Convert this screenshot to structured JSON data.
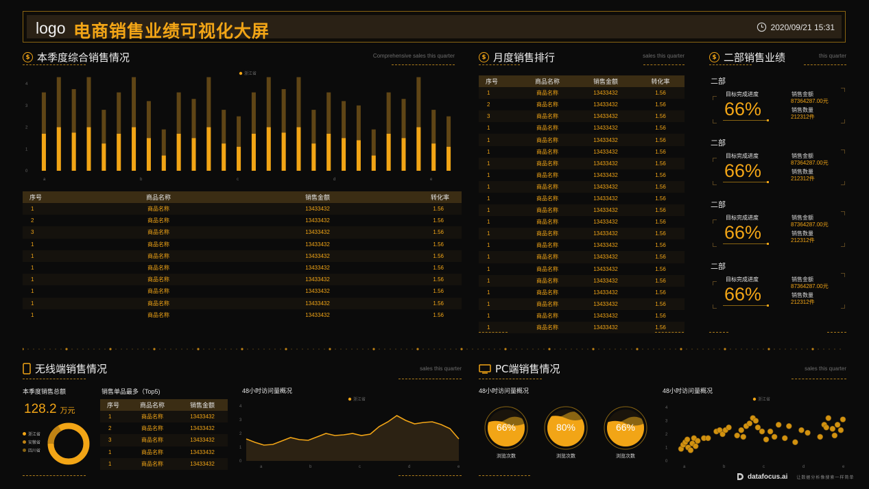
{
  "header": {
    "logo": "logo",
    "title": "电商销售业绩可视化大屏",
    "datetime": "2020/09/21 15:31"
  },
  "colors": {
    "accent": "#f2a516",
    "accent_dark": "#5f4516",
    "bg": "#0b0b0b"
  },
  "quarter_panel": {
    "title": "本季度综合销售情况",
    "subtitle": "Comprehensive sales this quarter",
    "chart_data": {
      "type": "bar",
      "legend": [
        "浙江省"
      ],
      "legend_position": "top-center",
      "x_ticks": [
        "a",
        "b",
        "c",
        "d",
        "e"
      ],
      "y_ticks": [
        "0",
        "1",
        "2",
        "3",
        "4"
      ],
      "ylim": [
        0,
        4
      ],
      "series": [
        {
          "values": [
            1.7,
            2.0,
            1.75,
            2.0,
            1.25,
            1.7,
            2.0,
            1.5,
            0.7,
            1.7,
            1.5,
            2.0,
            1.25,
            1.1,
            1.7,
            2.0,
            1.75,
            2.0,
            1.25,
            1.7,
            1.5,
            1.4,
            0.7,
            1.7,
            1.5,
            2.0,
            1.25,
            1.1
          ]
        },
        {
          "values": [
            1.9,
            2.3,
            2.0,
            2.3,
            1.55,
            1.9,
            2.3,
            1.7,
            1.2,
            1.9,
            1.8,
            2.3,
            1.55,
            1.4,
            1.9,
            2.3,
            2.0,
            2.3,
            1.55,
            1.9,
            1.7,
            1.6,
            1.2,
            1.9,
            1.8,
            2.3,
            1.55,
            1.4
          ]
        }
      ]
    },
    "table": {
      "headers": [
        "序号",
        "商品名称",
        "销售金额",
        "转化率"
      ],
      "rows": [
        [
          "1",
          "商品名称",
          "13433432",
          "1.56"
        ],
        [
          "2",
          "商品名称",
          "13433432",
          "1.56"
        ],
        [
          "3",
          "商品名称",
          "13433432",
          "1.56"
        ],
        [
          "1",
          "商品名称",
          "13433432",
          "1.56"
        ],
        [
          "1",
          "商品名称",
          "13433432",
          "1.56"
        ],
        [
          "1",
          "商品名称",
          "13433432",
          "1.56"
        ],
        [
          "1",
          "商品名称",
          "13433432",
          "1.56"
        ],
        [
          "1",
          "商品名称",
          "13433432",
          "1.56"
        ],
        [
          "1",
          "商品名称",
          "13433432",
          "1.56"
        ],
        [
          "1",
          "商品名称",
          "13433432",
          "1.56"
        ]
      ]
    }
  },
  "monthly_panel": {
    "title": "月度销售排行",
    "subtitle": "sales this quarter",
    "table": {
      "headers": [
        "序号",
        "商品名称",
        "销售金额",
        "转化率"
      ],
      "rows": [
        [
          "1",
          "商品名称",
          "13433432",
          "1.56"
        ],
        [
          "2",
          "商品名称",
          "13433432",
          "1.56"
        ],
        [
          "3",
          "商品名称",
          "13433432",
          "1.56"
        ],
        [
          "1",
          "商品名称",
          "13433432",
          "1.56"
        ],
        [
          "1",
          "商品名称",
          "13433432",
          "1.56"
        ],
        [
          "1",
          "商品名称",
          "13433432",
          "1.56"
        ],
        [
          "1",
          "商品名称",
          "13433432",
          "1.56"
        ],
        [
          "1",
          "商品名称",
          "13433432",
          "1.56"
        ],
        [
          "1",
          "商品名称",
          "13433432",
          "1.56"
        ],
        [
          "1",
          "商品名称",
          "13433432",
          "1.56"
        ],
        [
          "1",
          "商品名称",
          "13433432",
          "1.56"
        ],
        [
          "1",
          "商品名称",
          "13433432",
          "1.56"
        ],
        [
          "1",
          "商品名称",
          "13433432",
          "1.56"
        ],
        [
          "1",
          "商品名称",
          "13433432",
          "1.56"
        ],
        [
          "1",
          "商品名称",
          "13433432",
          "1.56"
        ],
        [
          "1",
          "商品名称",
          "13433432",
          "1.56"
        ],
        [
          "1",
          "商品名称",
          "13433432",
          "1.56"
        ],
        [
          "1",
          "商品名称",
          "13433432",
          "1.56"
        ],
        [
          "1",
          "商品名称",
          "13433432",
          "1.56"
        ],
        [
          "1",
          "商品名称",
          "13433432",
          "1.56"
        ],
        [
          "1",
          "商品名称",
          "13433432",
          "1.56"
        ]
      ]
    }
  },
  "dept_panel": {
    "title": "二部销售业绩",
    "subtitle": "this quarter",
    "cards": [
      {
        "name": "二部",
        "progress_label": "目标完成进度",
        "percent": "66%",
        "amount_label": "销售金额",
        "amount": "87364287.00元",
        "count_label": "销售数量",
        "count": "212312件"
      },
      {
        "name": "二部",
        "progress_label": "目标完成进度",
        "percent": "66%",
        "amount_label": "销售金额",
        "amount": "87364287.00元",
        "count_label": "销售数量",
        "count": "212312件"
      },
      {
        "name": "二部",
        "progress_label": "目标完成进度",
        "percent": "66%",
        "amount_label": "销售金额",
        "amount": "87364287.00元",
        "count_label": "销售数量",
        "count": "212312件"
      },
      {
        "name": "二部",
        "progress_label": "目标完成进度",
        "percent": "66%",
        "amount_label": "销售金额",
        "amount": "87364287.00元",
        "count_label": "销售数量",
        "count": "212312件"
      }
    ]
  },
  "mobile_panel": {
    "title": "无线端销售情况",
    "subtitle": "sales this quarter",
    "total_label": "本季度销售总额",
    "total_value": "128.2",
    "total_unit": "万元",
    "donut_legend": [
      "浙江省",
      "安徽省",
      "四川省"
    ],
    "top5_title": "销售单品最多（Top5)",
    "top5_table": {
      "headers": [
        "序号",
        "商品名称",
        "销售金额"
      ],
      "rows": [
        [
          "1",
          "商品名称",
          "13433432"
        ],
        [
          "2",
          "商品名称",
          "13433432"
        ],
        [
          "3",
          "商品名称",
          "13433432"
        ],
        [
          "1",
          "商品名称",
          "13433432"
        ],
        [
          "1",
          "商品名称",
          "13433432"
        ]
      ]
    },
    "visits_title": "48小时访问量概况",
    "chart_data": {
      "type": "area",
      "legend": [
        "浙江省"
      ],
      "x_ticks": [
        "a",
        "b",
        "c",
        "d",
        "e"
      ],
      "y_ticks": [
        "0",
        "1",
        "2",
        "3",
        "4"
      ],
      "ylim": [
        0,
        4
      ],
      "x": [
        0,
        0.5,
        1,
        1.5,
        2,
        2.5,
        3,
        3.5,
        4,
        4.5,
        5,
        5.5,
        6,
        6.5,
        7,
        7.5,
        8,
        8.5,
        9,
        9.5,
        10,
        10.5,
        11,
        11.5,
        12
      ],
      "values": [
        1.6,
        1.35,
        1.15,
        1.2,
        1.45,
        1.7,
        1.55,
        1.5,
        1.75,
        2.0,
        1.85,
        1.9,
        2.0,
        1.85,
        1.95,
        2.5,
        2.85,
        3.3,
        2.95,
        2.7,
        2.8,
        2.85,
        2.65,
        2.35,
        1.6
      ]
    }
  },
  "pc_panel": {
    "title": "PC端销售情况",
    "subtitle": "sales this quarter",
    "visits_title": "48小时访问量概况",
    "gauges": [
      {
        "percent": "66%",
        "label": "浏览次数",
        "value": 0.66
      },
      {
        "percent": "80%",
        "label": "浏览次数",
        "value": 0.8
      },
      {
        "percent": "66%",
        "label": "浏览次数",
        "value": 0.66
      }
    ],
    "chart_data": {
      "type": "scatter",
      "legend": [
        "浙江省"
      ],
      "x_ticks": [
        "a",
        "b",
        "c",
        "d",
        "e"
      ],
      "y_ticks": [
        "0",
        "1",
        "2",
        "3",
        "4"
      ],
      "ylim": [
        0,
        4
      ],
      "xlim": [
        0,
        4
      ],
      "points": [
        [
          0.05,
          0.9
        ],
        [
          0.1,
          1.2
        ],
        [
          0.15,
          1.4
        ],
        [
          0.2,
          1.6
        ],
        [
          0.22,
          1.0
        ],
        [
          0.28,
          0.8
        ],
        [
          0.32,
          1.3
        ],
        [
          0.36,
          1.7
        ],
        [
          0.4,
          1.1
        ],
        [
          0.45,
          1.5
        ],
        [
          0.6,
          1.7
        ],
        [
          0.7,
          1.7
        ],
        [
          0.9,
          2.2
        ],
        [
          0.98,
          2.3
        ],
        [
          1.05,
          2.0
        ],
        [
          1.12,
          2.3
        ],
        [
          1.2,
          2.5
        ],
        [
          1.4,
          1.9
        ],
        [
          1.5,
          2.3
        ],
        [
          1.55,
          1.8
        ],
        [
          1.62,
          2.6
        ],
        [
          1.7,
          2.8
        ],
        [
          1.78,
          3.2
        ],
        [
          1.85,
          3.0
        ],
        [
          1.9,
          2.5
        ],
        [
          2.0,
          2.2
        ],
        [
          2.1,
          1.6
        ],
        [
          2.2,
          2.2
        ],
        [
          2.3,
          1.8
        ],
        [
          2.4,
          2.7
        ],
        [
          2.55,
          1.7
        ],
        [
          2.65,
          2.6
        ],
        [
          2.8,
          1.4
        ],
        [
          2.95,
          2.3
        ],
        [
          3.1,
          2.1
        ],
        [
          3.4,
          1.8
        ],
        [
          3.5,
          2.7
        ],
        [
          3.55,
          2.5
        ],
        [
          3.6,
          3.2
        ],
        [
          3.7,
          2.4
        ],
        [
          3.75,
          1.9
        ],
        [
          3.82,
          2.7
        ],
        [
          3.9,
          2.3
        ],
        [
          3.95,
          3.1
        ]
      ]
    }
  },
  "footer": {
    "brand": "datafocus.ai",
    "slogan": "让数据分析像搜索一样简单"
  }
}
